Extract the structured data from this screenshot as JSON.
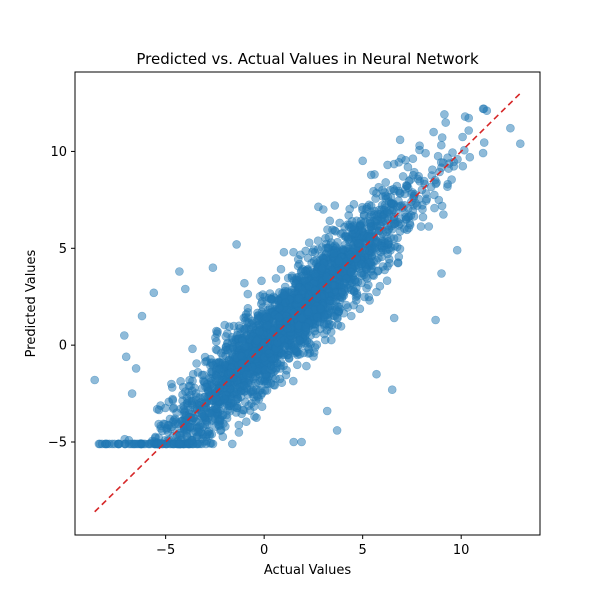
{
  "chart_data": {
    "type": "scatter",
    "title": "Predicted vs. Actual Values in Neural Network",
    "xlabel": "Actual Values",
    "ylabel": "Predicted Values",
    "xlim": [
      -9.6,
      14.0
    ],
    "ylim": [
      -9.8,
      14.1
    ],
    "xticks": [
      -5,
      0,
      5,
      10
    ],
    "yticks": [
      -5,
      0,
      5,
      10
    ],
    "point_color": "#1f77b4",
    "point_alpha": 0.5,
    "grid": false,
    "reference_line": {
      "style": "dashed",
      "color": "#d62728",
      "x": [
        -8.6,
        13.0
      ],
      "y": [
        -8.6,
        13.0
      ]
    },
    "sample_points": [
      {
        "x": -8.6,
        "y": -1.8
      },
      {
        "x": -7.4,
        "y": -5.1
      },
      {
        "x": -7.1,
        "y": 0.5
      },
      {
        "x": -7.0,
        "y": -0.6
      },
      {
        "x": -6.7,
        "y": -2.5
      },
      {
        "x": -6.5,
        "y": -1.2
      },
      {
        "x": -6.2,
        "y": 1.5
      },
      {
        "x": -5.6,
        "y": 2.7
      },
      {
        "x": -4.3,
        "y": 3.8
      },
      {
        "x": -4.0,
        "y": 2.9
      },
      {
        "x": -2.6,
        "y": 4.0
      },
      {
        "x": -1.4,
        "y": 5.2
      },
      {
        "x": 1.5,
        "y": -5.0
      },
      {
        "x": 1.9,
        "y": -5.0
      },
      {
        "x": 3.2,
        "y": -3.4
      },
      {
        "x": 3.7,
        "y": -4.4
      },
      {
        "x": 5.7,
        "y": -1.5
      },
      {
        "x": 6.5,
        "y": -2.3
      },
      {
        "x": 6.6,
        "y": 1.4
      },
      {
        "x": 8.7,
        "y": 1.3
      },
      {
        "x": 9.0,
        "y": 3.7
      },
      {
        "x": 9.8,
        "y": 4.9
      },
      {
        "x": 6.9,
        "y": 10.6
      },
      {
        "x": 8.6,
        "y": 11.0
      },
      {
        "x": 10.2,
        "y": 11.8
      },
      {
        "x": 11.3,
        "y": 12.1
      },
      {
        "x": 12.5,
        "y": 11.2
      },
      {
        "x": 13.0,
        "y": 10.4
      },
      {
        "x": 6.0,
        "y": 8.0
      },
      {
        "x": 3.0,
        "y": 7.0
      },
      {
        "x": 1.0,
        "y": 4.8
      },
      {
        "x": -1.0,
        "y": 3.2
      }
    ]
  }
}
